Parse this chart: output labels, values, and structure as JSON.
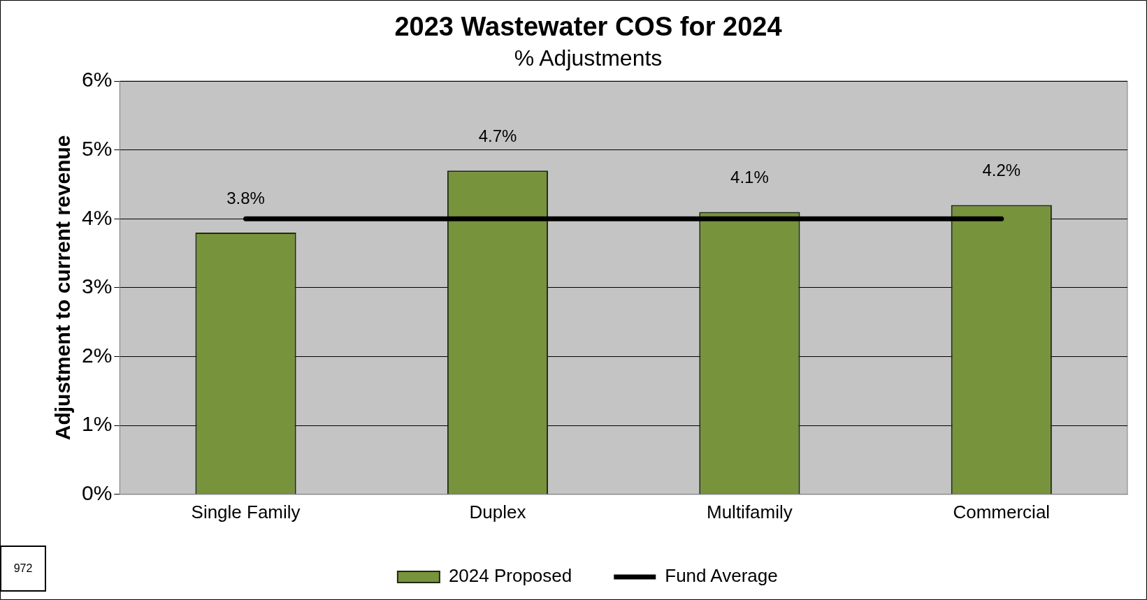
{
  "chart_data": {
    "type": "bar",
    "title": "2023 Wastewater COS for 2024",
    "subtitle": "% Adjustments",
    "ylabel": "Adjustment to current revenue",
    "categories": [
      "Single Family",
      "Duplex",
      "Multifamily",
      "Commercial"
    ],
    "series": [
      {
        "name": "2024 Proposed",
        "color": "#77933c",
        "values": [
          3.8,
          4.7,
          4.1,
          4.2
        ],
        "value_labels": [
          "3.8%",
          "4.7%",
          "4.1%",
          "4.2%"
        ]
      },
      {
        "name": "Fund Average",
        "type": "line",
        "color": "#000000",
        "values": [
          4.0,
          4.0,
          4.0,
          4.0
        ]
      }
    ],
    "ylim": [
      0,
      6
    ],
    "yticks": [
      {
        "value": 0,
        "label": "0%"
      },
      {
        "value": 1,
        "label": "1%"
      },
      {
        "value": 2,
        "label": "2%"
      },
      {
        "value": 3,
        "label": "3%"
      },
      {
        "value": 4,
        "label": "4%"
      },
      {
        "value": 5,
        "label": "5%"
      },
      {
        "value": 6,
        "label": "6%"
      }
    ],
    "grid": "y",
    "legend": "bottom",
    "marker": "none",
    "annotations": [
      "972"
    ]
  }
}
